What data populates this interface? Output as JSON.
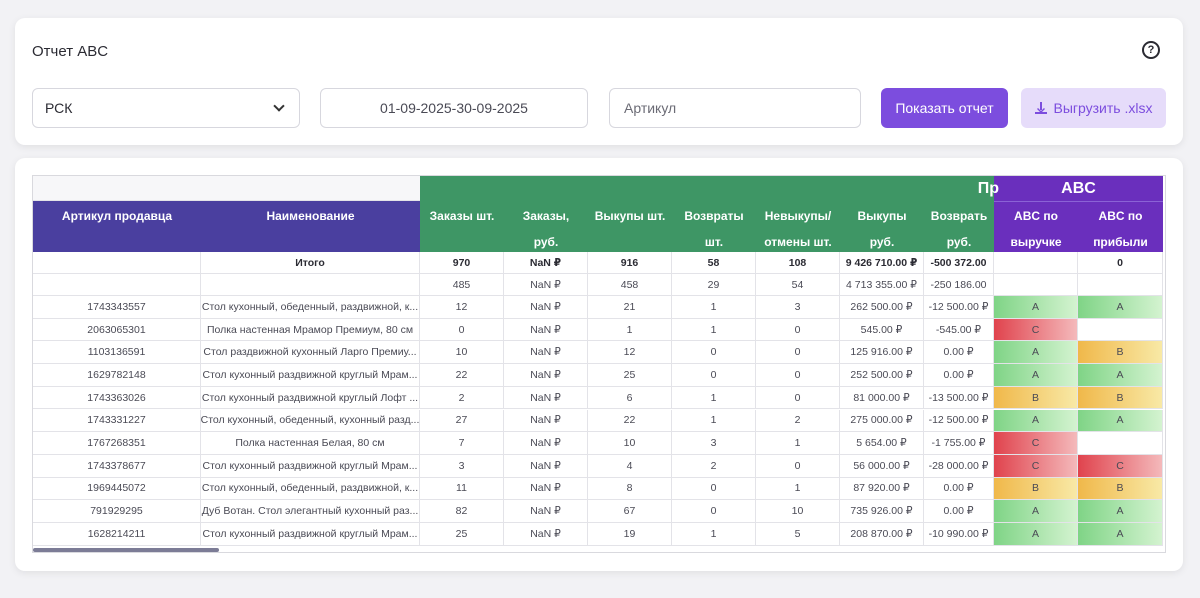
{
  "header": {
    "title": "Отчет ABC"
  },
  "filters": {
    "selected": "РСК",
    "date_range": "01-09-2025-30-09-2025",
    "article_placeholder": "Артикул",
    "show_label": "Показать отчет",
    "export_label": "Выгрузить .xlsx"
  },
  "table": {
    "group_sales": "Пр",
    "group_abc": "ABC",
    "columns": {
      "c0": "Артикул продавца",
      "c1": "Наименование",
      "c2": "Заказы шт.",
      "c3a": "Заказы,",
      "c3b": "руб.",
      "c4": "Выкупы шт.",
      "c5a": "Возвраты",
      "c5b": "шт.",
      "c6a": "Невыкупы/",
      "c6b": "отмены шт.",
      "c7a": "Выкупы",
      "c7b": "руб.",
      "c8a": "Возврать",
      "c8b": "руб.",
      "c9a": "ABC по",
      "c9b": "выручке",
      "c10a": "ABC по",
      "c10b": "прибыли"
    },
    "total": [
      "",
      "Итого",
      "970",
      "NaN ₽",
      "916",
      "58",
      "108",
      "9 426 710.00 ₽",
      "-500 372.00",
      "",
      "0"
    ],
    "second": [
      "",
      "",
      "485",
      "NaN ₽",
      "458",
      "29",
      "54",
      "4 713 355.00 ₽",
      "-250 186.00",
      "",
      ""
    ],
    "rows": [
      [
        "1743343557",
        "Стол кухонный, обеденный, раздвижной, к...",
        "12",
        "NaN ₽",
        "21",
        "1",
        "3",
        "262 500.00 ₽",
        "-12 500.00 ₽",
        "A",
        "A"
      ],
      [
        "2063065301",
        "Полка настенная Мрамор Премиум, 80 см",
        "0",
        "NaN ₽",
        "1",
        "1",
        "0",
        "545.00 ₽",
        "-545.00 ₽",
        "C",
        ""
      ],
      [
        "1103136591",
        "Стол раздвижной кухонный Ларго Премиу...",
        "10",
        "NaN ₽",
        "12",
        "0",
        "0",
        "125 916.00 ₽",
        "0.00 ₽",
        "A",
        "B"
      ],
      [
        "1629782148",
        "Стол кухонный раздвижной круглый Мрам...",
        "22",
        "NaN ₽",
        "25",
        "0",
        "0",
        "252 500.00 ₽",
        "0.00 ₽",
        "A",
        "A"
      ],
      [
        "1743363026",
        "Стол кухонный раздвижной круглый Лофт ...",
        "2",
        "NaN ₽",
        "6",
        "1",
        "0",
        "81 000.00 ₽",
        "-13 500.00 ₽",
        "B",
        "B"
      ],
      [
        "1743331227",
        "Стол кухонный, обеденный, кухонный разд...",
        "27",
        "NaN ₽",
        "22",
        "1",
        "2",
        "275 000.00 ₽",
        "-12 500.00 ₽",
        "A",
        "A"
      ],
      [
        "1767268351",
        "Полка настенная Белая, 80 см",
        "7",
        "NaN ₽",
        "10",
        "3",
        "1",
        "5 654.00 ₽",
        "-1 755.00 ₽",
        "C",
        ""
      ],
      [
        "1743378677",
        "Стол кухонный раздвижной круглый Мрам...",
        "3",
        "NaN ₽",
        "4",
        "2",
        "0",
        "56 000.00 ₽",
        "-28 000.00 ₽",
        "C",
        "C"
      ],
      [
        "1969445072",
        "Стол кухонный, обеденный, раздвижной, к...",
        "11",
        "NaN ₽",
        "8",
        "0",
        "1",
        "87 920.00 ₽",
        "0.00 ₽",
        "B",
        "B"
      ],
      [
        "791929295",
        "Дуб Вотан. Стол элегантный кухонный раз...",
        "82",
        "NaN ₽",
        "67",
        "0",
        "10",
        "735 926.00 ₽",
        "0.00 ₽",
        "A",
        "A"
      ],
      [
        "1628214211",
        "Стол кухонный раздвижной круглый Мрам...",
        "25",
        "NaN ₽",
        "19",
        "1",
        "5",
        "208 870.00 ₽",
        "-10 990.00 ₽",
        "A",
        "A"
      ]
    ]
  },
  "colors": {
    "accent": "#7c4dde",
    "header_blue": "#4a3f9f",
    "header_green": "#3e9665",
    "header_purple": "#6a2fbd",
    "grade_A": "#8fdb94",
    "grade_B": "#f2c454",
    "grade_C": "#e2545b"
  },
  "icons": {
    "help": "help-circle-icon",
    "select": "chevron-down-icon",
    "export": "download-icon"
  }
}
